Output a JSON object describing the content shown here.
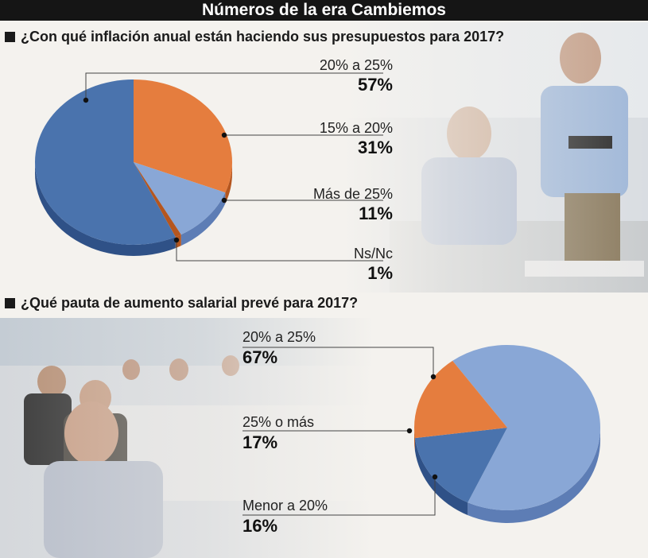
{
  "header": {
    "title": "Números de la era Cambiemos"
  },
  "colors": {
    "dark_blue": "#4a73ad",
    "dark_blue_side": "#2f5187",
    "orange": "#e57d3e",
    "orange_side": "#b5561f",
    "light_blue": "#89a7d6",
    "light_blue_side": "#5d7db5"
  },
  "chart_data": [
    {
      "type": "pie",
      "title": "¿Con qué inflación anual están haciendo sus presupuestos para 2017?",
      "categories": [
        "20% a 25%",
        "15% a 20%",
        "Más de 25%",
        "Ns/Nc"
      ],
      "values": [
        57,
        31,
        11,
        1
      ],
      "value_labels": [
        "57%",
        "31%",
        "11%",
        "1%"
      ],
      "legend": "right"
    },
    {
      "type": "pie",
      "title": "¿Qué pauta de aumento salarial prevé para 2017?",
      "categories": [
        "20% a 25%",
        "25% o más",
        "Menor a 20%"
      ],
      "values": [
        67,
        17,
        16
      ],
      "value_labels": [
        "67%",
        "17%",
        "16%"
      ],
      "legend": "left"
    }
  ]
}
